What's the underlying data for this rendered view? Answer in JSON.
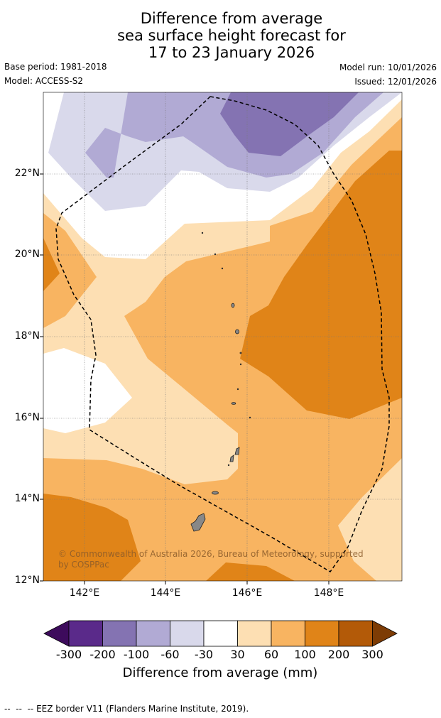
{
  "title": {
    "line1": "Difference from average",
    "line2": "sea surface height forecast for",
    "line3": "17 to 23 January 2026"
  },
  "meta": {
    "base_period": "Base period: 1981-2018",
    "model": "Model: ACCESS-S2",
    "model_run": "Model run: 10/01/2026",
    "issued": "Issued: 12/01/2026"
  },
  "map": {
    "lat_ticks": [
      "22°N",
      "20°N",
      "18°N",
      "16°N",
      "14°N",
      "12°N"
    ],
    "lon_ticks": [
      "142°E",
      "144°E",
      "146°E",
      "148°E"
    ],
    "copyright_line1": "© Commonwealth of Australia 2026, Bureau of Meteorology, supported",
    "copyright_line2": "by COSPPac"
  },
  "colorbar": {
    "labels": [
      "-300",
      "-200",
      "-100",
      "-60",
      "-30",
      "30",
      "60",
      "100",
      "200",
      "300"
    ],
    "title": "Difference from average (mm)",
    "colors": [
      "#3d0b5c",
      "#5a2a8a",
      "#8473b2",
      "#b1aad4",
      "#d9d9eb",
      "#ffffff",
      "#fddfb3",
      "#f8b461",
      "#e08418",
      "#b35a08",
      "#7d3c05"
    ]
  },
  "legend": {
    "eez": "EEZ border V11 (Flanders Marine Institute, 2019)."
  }
}
